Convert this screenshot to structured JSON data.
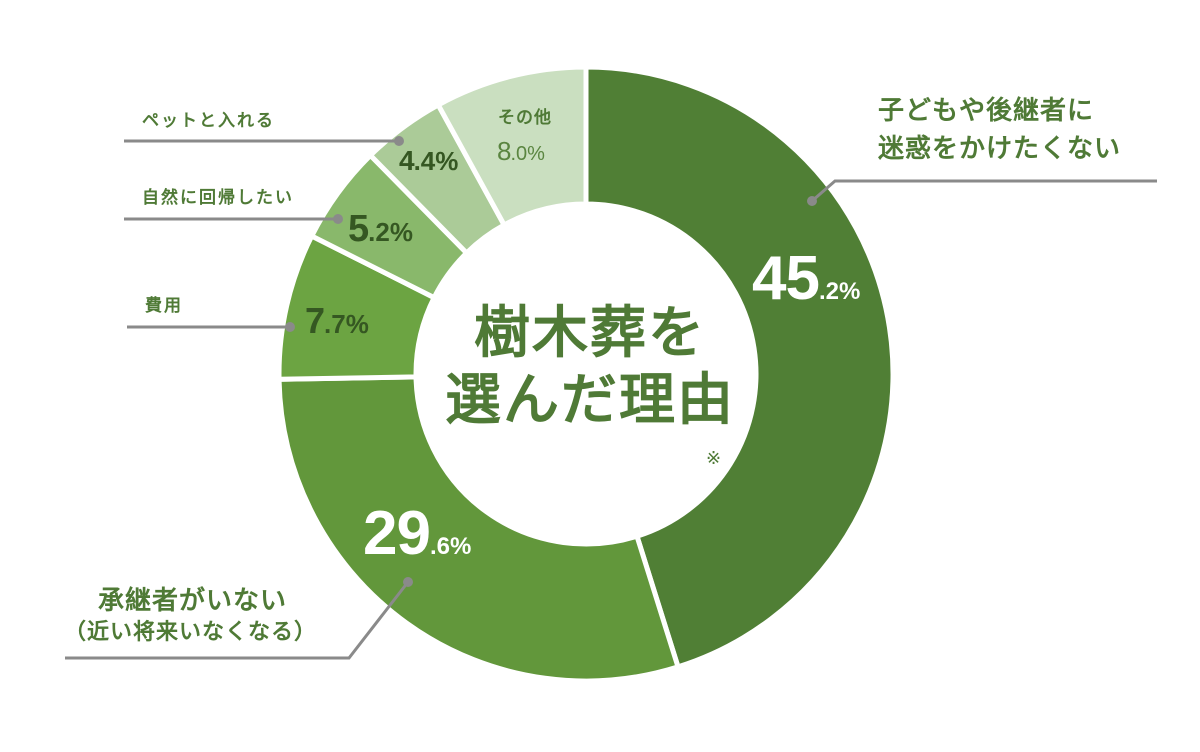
{
  "chart_data": {
    "type": "pie",
    "subtype": "donut",
    "title": "樹木葬を選んだ理由",
    "title_lines": [
      "樹木葬を",
      "選んだ理由"
    ],
    "title_note": "※",
    "start_angle": "12 o'clock, clockwise",
    "categories": [
      "子どもや後継者に迷惑をかけたくない",
      "承継者がいない（近い将来いなくなる）",
      "費用",
      "自然に回帰したい",
      "ペットと入れる",
      "その他"
    ],
    "values": [
      45.2,
      29.6,
      7.7,
      5.2,
      4.4,
      8.0
    ],
    "unit": "%",
    "colors": [
      "#507f35",
      "#62973b",
      "#6ca442",
      "#89b86b",
      "#abcb98",
      "#cadfc0"
    ],
    "legend": "none (callout labels)"
  },
  "labels": {
    "s0_line1": "子どもや後継者に",
    "s0_line2": "迷惑をかけたくない",
    "s1_line1": "承継者がいない",
    "s1_line2": "（近い将来いなくなる）",
    "s2": "費用",
    "s3": "自然に回帰したい",
    "s4": "ペットと入れる",
    "s5": "その他"
  },
  "pct": {
    "s0_int": "45",
    "s0_dec": ".2%",
    "s1_int": "29",
    "s1_dec": ".6%",
    "s2_int": "7",
    "s2_dec": ".7%",
    "s3_int": "5",
    "s3_dec": ".2%",
    "s4_int": "4",
    "s4_dec": ".4%",
    "s5_int": "8",
    "s5_dec": ".0%"
  },
  "center": {
    "line1": "樹木葬を",
    "line2": "選んだ理由",
    "note": "※"
  }
}
